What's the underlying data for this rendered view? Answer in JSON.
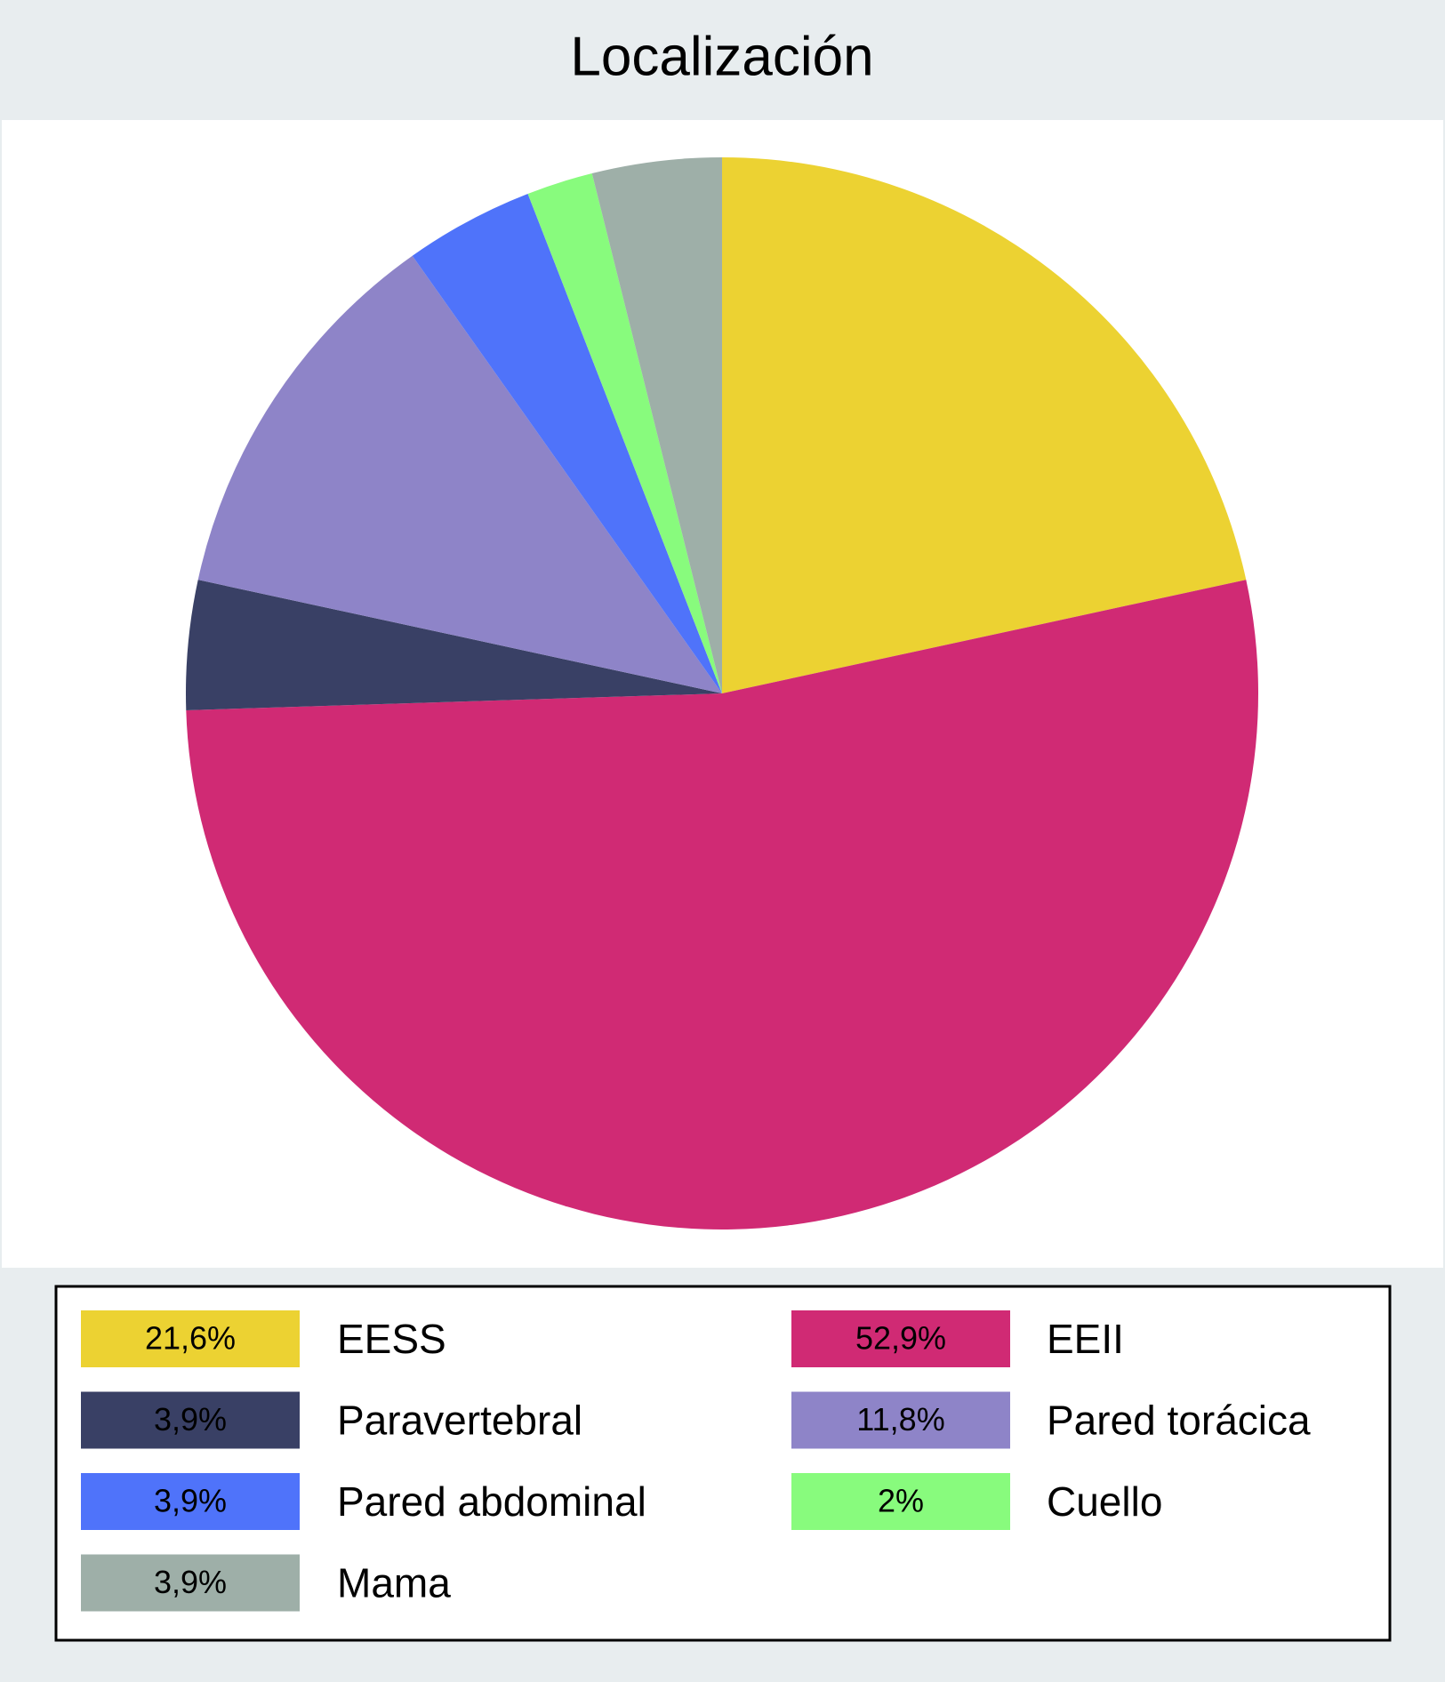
{
  "chart_data": {
    "type": "pie",
    "title": "Localización",
    "categories": [
      "EESS",
      "EEII",
      "Paravertebral",
      "Pared torácica",
      "Pared abdominal",
      "Cuello",
      "Mama"
    ],
    "values": [
      21.6,
      52.9,
      3.9,
      11.8,
      3.9,
      2,
      3.9
    ],
    "value_labels": [
      "21,6%",
      "52,9%",
      "3,9%",
      "11,8%",
      "3,9%",
      "2%",
      "3,9%"
    ],
    "colors": [
      "#ecd232",
      "#d02a74",
      "#394065",
      "#8e84c8",
      "#4f73fa",
      "#88fb7d",
      "#9eafa8"
    ]
  }
}
